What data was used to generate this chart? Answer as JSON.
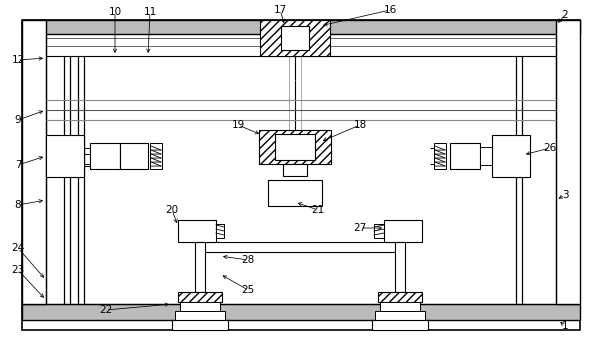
{
  "bg_color": "#ffffff",
  "fig_width": 5.97,
  "fig_height": 3.47
}
